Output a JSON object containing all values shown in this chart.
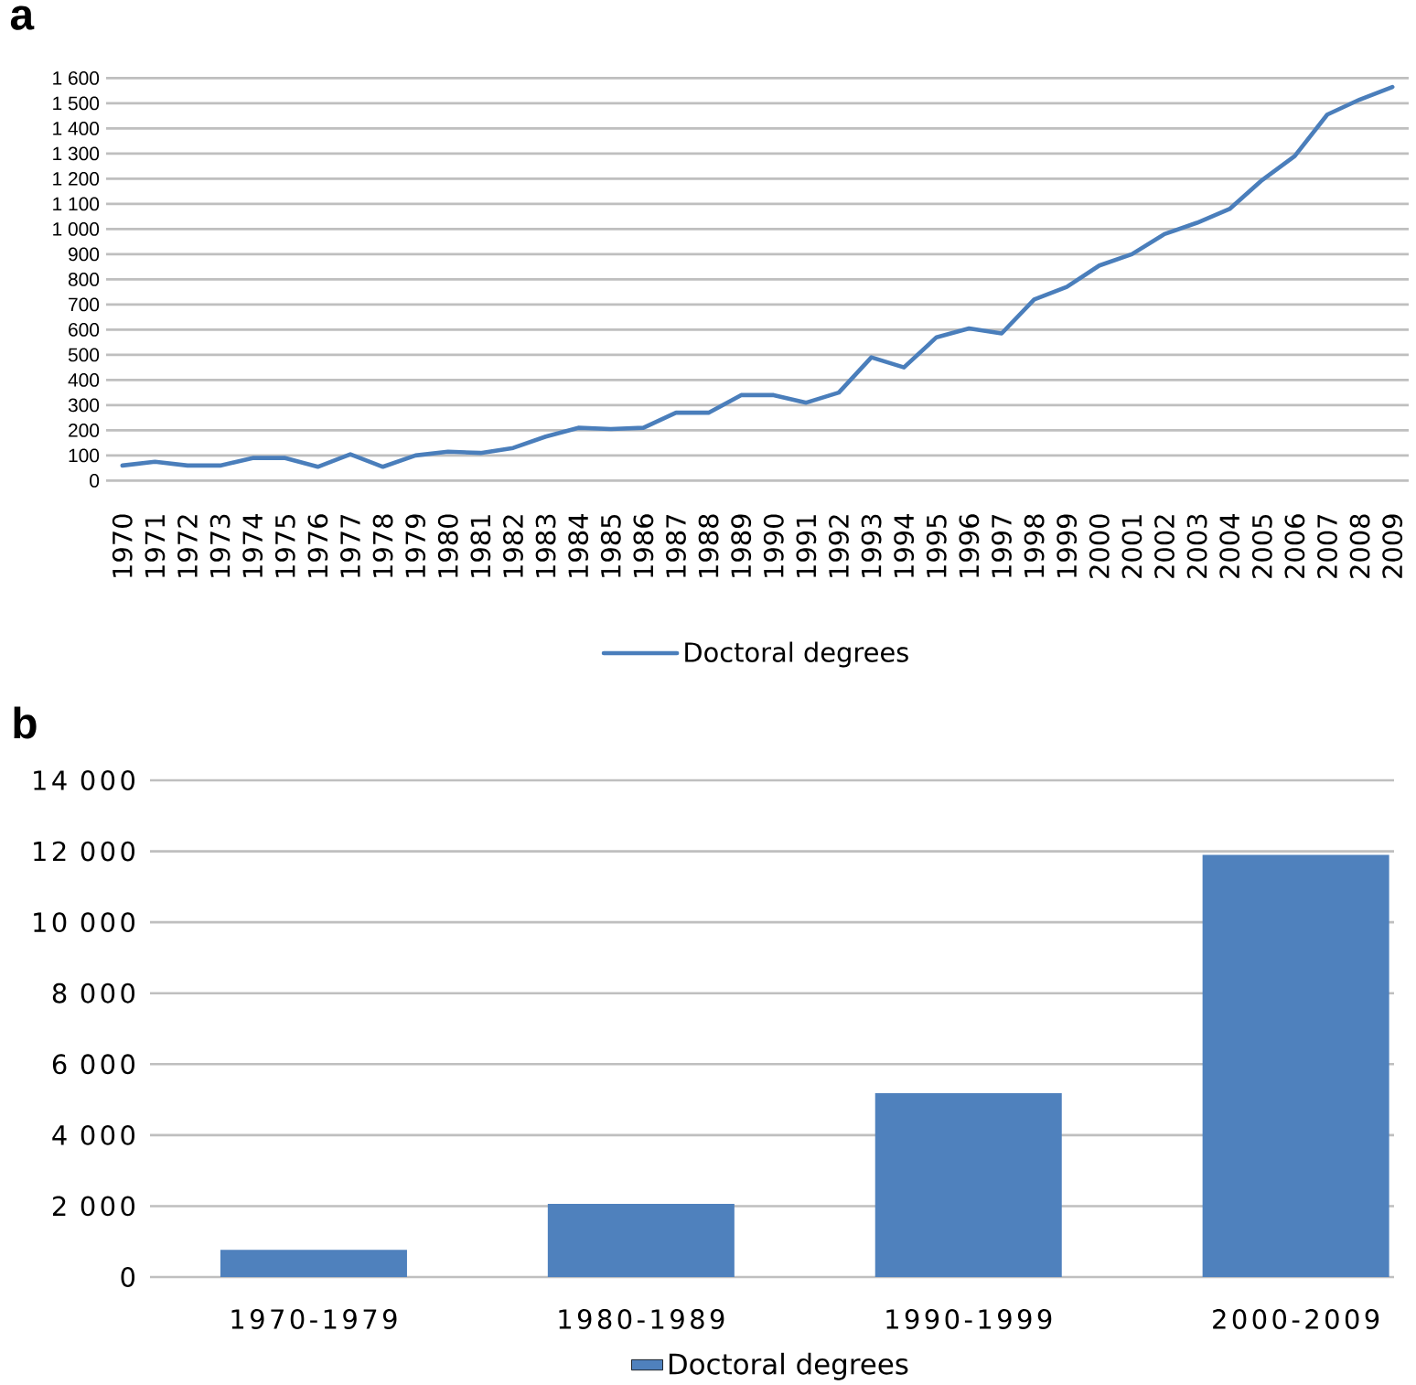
{
  "chart_data": [
    {
      "type": "line",
      "title": "a",
      "categories": [
        "1970",
        "1971",
        "1972",
        "1973",
        "1974",
        "1975",
        "1976",
        "1977",
        "1978",
        "1979",
        "1980",
        "1981",
        "1982",
        "1983",
        "1984",
        "1985",
        "1986",
        "1987",
        "1988",
        "1989",
        "1990",
        "1991",
        "1992",
        "1993",
        "1994",
        "1995",
        "1996",
        "1997",
        "1998",
        "1999",
        "2000",
        "2001",
        "2002",
        "2003",
        "2004",
        "2005",
        "2006",
        "2007",
        "2008",
        "2009"
      ],
      "series": [
        {
          "name": "Doctoral degrees",
          "color": "#4a7ebb",
          "values": [
            60,
            75,
            60,
            60,
            90,
            90,
            55,
            105,
            55,
            100,
            115,
            110,
            130,
            175,
            210,
            205,
            210,
            270,
            270,
            340,
            340,
            310,
            350,
            490,
            450,
            570,
            605,
            585,
            720,
            770,
            855,
            900,
            980,
            1025,
            1080,
            1195,
            1290,
            1455,
            1515,
            1565
          ]
        }
      ],
      "ylim": [
        0,
        1600
      ],
      "yticks": [
        0,
        100,
        200,
        300,
        400,
        500,
        600,
        700,
        800,
        900,
        {
          "value": 1000,
          "label": "1 000"
        },
        {
          "value": 1100,
          "label": "1 100"
        },
        {
          "value": 1200,
          "label": "1 200"
        },
        {
          "value": 1300,
          "label": "1 300"
        },
        {
          "value": 1400,
          "label": "1 400"
        },
        {
          "value": 1500,
          "label": "1 500"
        },
        {
          "value": 1600,
          "label": "1 600"
        }
      ],
      "grid": "y",
      "legend": "bottom"
    },
    {
      "type": "bar",
      "title": "b",
      "categories": [
        "1970-1979",
        "1980-1989",
        "1990-1999",
        "2000-2009"
      ],
      "series": [
        {
          "name": "Doctoral degrees",
          "color": "#4f81bd",
          "values": [
            770,
            2060,
            5180,
            11900
          ]
        }
      ],
      "ylim": [
        0,
        14000
      ],
      "yticks": [
        0,
        {
          "value": 2000,
          "label": "2 000"
        },
        {
          "value": 4000,
          "label": "4 000"
        },
        {
          "value": 6000,
          "label": "6 000"
        },
        {
          "value": 8000,
          "label": "8 000"
        },
        {
          "value": 10000,
          "label": "10 000"
        },
        {
          "value": 12000,
          "label": "12 000"
        },
        {
          "value": 14000,
          "label": "14 000"
        }
      ],
      "grid": "y",
      "legend": "bottom"
    }
  ]
}
